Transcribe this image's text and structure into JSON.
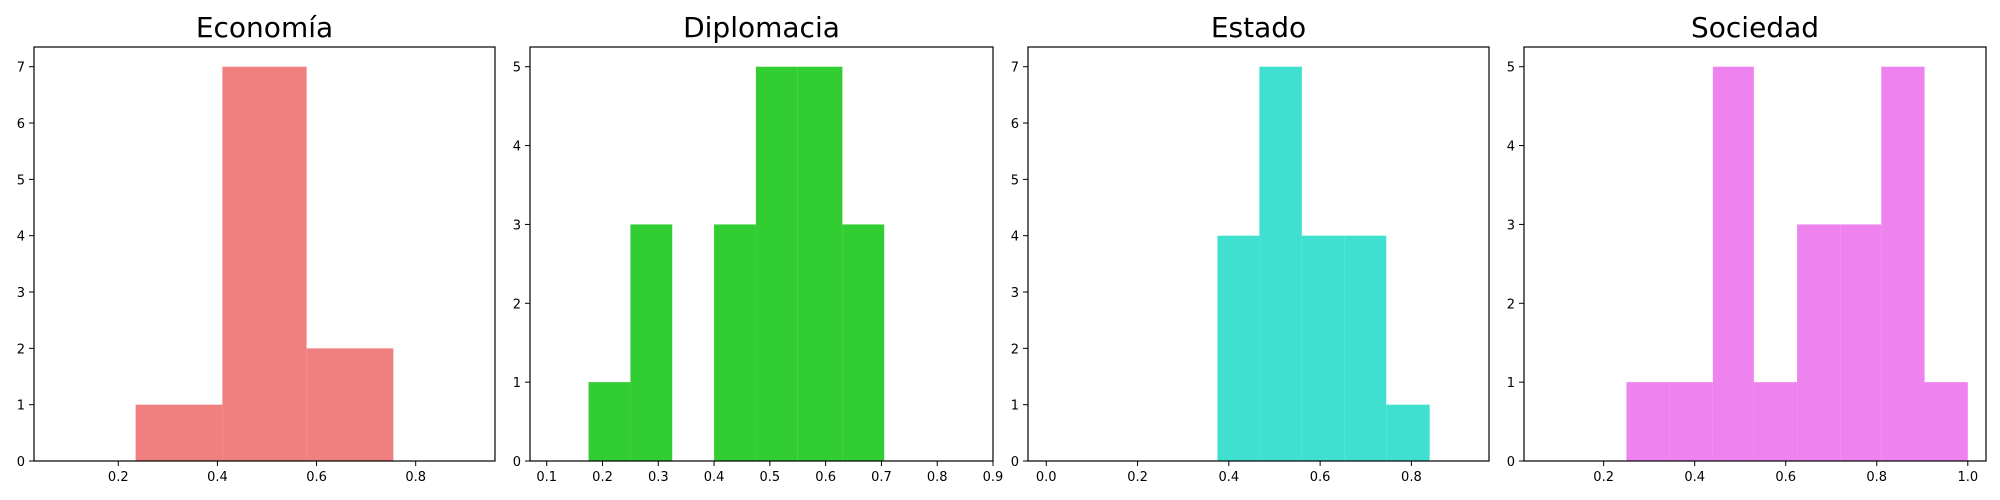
{
  "chart_data": [
    {
      "type": "bar",
      "title": "Economía",
      "color": "#f08080",
      "xlim": [
        0.03,
        0.96
      ],
      "ylim": [
        0,
        7.35
      ],
      "xticks": [
        0.2,
        0.4,
        0.6,
        0.8
      ],
      "xtick_labels": [
        "0.2",
        "0.4",
        "0.6",
        "0.8"
      ],
      "yticks": [
        0,
        1,
        2,
        3,
        4,
        5,
        6,
        7
      ],
      "ytick_labels": [
        "0",
        "1",
        "2",
        "3",
        "4",
        "5",
        "6",
        "7"
      ],
      "bins": [
        {
          "x0": 0.235,
          "x1": 0.41,
          "count": 1
        },
        {
          "x0": 0.41,
          "x1": 0.58,
          "count": 7
        },
        {
          "x0": 0.58,
          "x1": 0.755,
          "count": 2
        }
      ]
    },
    {
      "type": "bar",
      "title": "Diplomacia",
      "color": "#32cd32",
      "xlim": [
        0.07,
        0.9
      ],
      "ylim": [
        0,
        5.25
      ],
      "xticks": [
        0.1,
        0.2,
        0.3,
        0.4,
        0.5,
        0.6,
        0.7,
        0.8,
        0.9
      ],
      "xtick_labels": [
        "0.1",
        "0.2",
        "0.3",
        "0.4",
        "0.5",
        "0.6",
        "0.7",
        "0.8",
        "0.9"
      ],
      "yticks": [
        0,
        1,
        2,
        3,
        4,
        5
      ],
      "ytick_labels": [
        "0",
        "1",
        "2",
        "3",
        "4",
        "5"
      ],
      "bins": [
        {
          "x0": 0.175,
          "x1": 0.25,
          "count": 1
        },
        {
          "x0": 0.25,
          "x1": 0.325,
          "count": 3
        },
        {
          "x0": 0.325,
          "x1": 0.4,
          "count": 0
        },
        {
          "x0": 0.4,
          "x1": 0.475,
          "count": 3
        },
        {
          "x0": 0.475,
          "x1": 0.55,
          "count": 5
        },
        {
          "x0": 0.55,
          "x1": 0.63,
          "count": 5
        },
        {
          "x0": 0.63,
          "x1": 0.705,
          "count": 3
        }
      ]
    },
    {
      "type": "bar",
      "title": "Estado",
      "color": "#40e0d0",
      "xlim": [
        -0.04,
        0.97
      ],
      "ylim": [
        0,
        7.35
      ],
      "xticks": [
        0.0,
        0.2,
        0.4,
        0.6,
        0.8
      ],
      "xtick_labels": [
        "0.0",
        "0.2",
        "0.4",
        "0.6",
        "0.8"
      ],
      "yticks": [
        0,
        1,
        2,
        3,
        4,
        5,
        6,
        7
      ],
      "ytick_labels": [
        "0",
        "1",
        "2",
        "3",
        "4",
        "5",
        "6",
        "7"
      ],
      "bins": [
        {
          "x0": 0.375,
          "x1": 0.467,
          "count": 4
        },
        {
          "x0": 0.467,
          "x1": 0.56,
          "count": 7
        },
        {
          "x0": 0.56,
          "x1": 0.653,
          "count": 4
        },
        {
          "x0": 0.653,
          "x1": 0.745,
          "count": 4
        },
        {
          "x0": 0.745,
          "x1": 0.84,
          "count": 1
        }
      ]
    },
    {
      "type": "bar",
      "title": "Sociedad",
      "color": "#ee82ee",
      "xlim": [
        0.025,
        1.04
      ],
      "ylim": [
        0,
        5.25
      ],
      "xticks": [
        0.2,
        0.4,
        0.6,
        0.8,
        1.0
      ],
      "xtick_labels": [
        "0.2",
        "0.4",
        "0.6",
        "0.8",
        "1.0"
      ],
      "yticks": [
        0,
        1,
        2,
        3,
        4,
        5
      ],
      "ytick_labels": [
        "0",
        "1",
        "2",
        "3",
        "4",
        "5"
      ],
      "bins": [
        {
          "x0": 0.25,
          "x1": 0.345,
          "count": 1
        },
        {
          "x0": 0.345,
          "x1": 0.44,
          "count": 1
        },
        {
          "x0": 0.44,
          "x1": 0.53,
          "count": 5
        },
        {
          "x0": 0.53,
          "x1": 0.625,
          "count": 1
        },
        {
          "x0": 0.625,
          "x1": 0.72,
          "count": 3
        },
        {
          "x0": 0.72,
          "x1": 0.81,
          "count": 3
        },
        {
          "x0": 0.81,
          "x1": 0.905,
          "count": 5
        },
        {
          "x0": 0.905,
          "x1": 1.0,
          "count": 1
        }
      ]
    }
  ]
}
